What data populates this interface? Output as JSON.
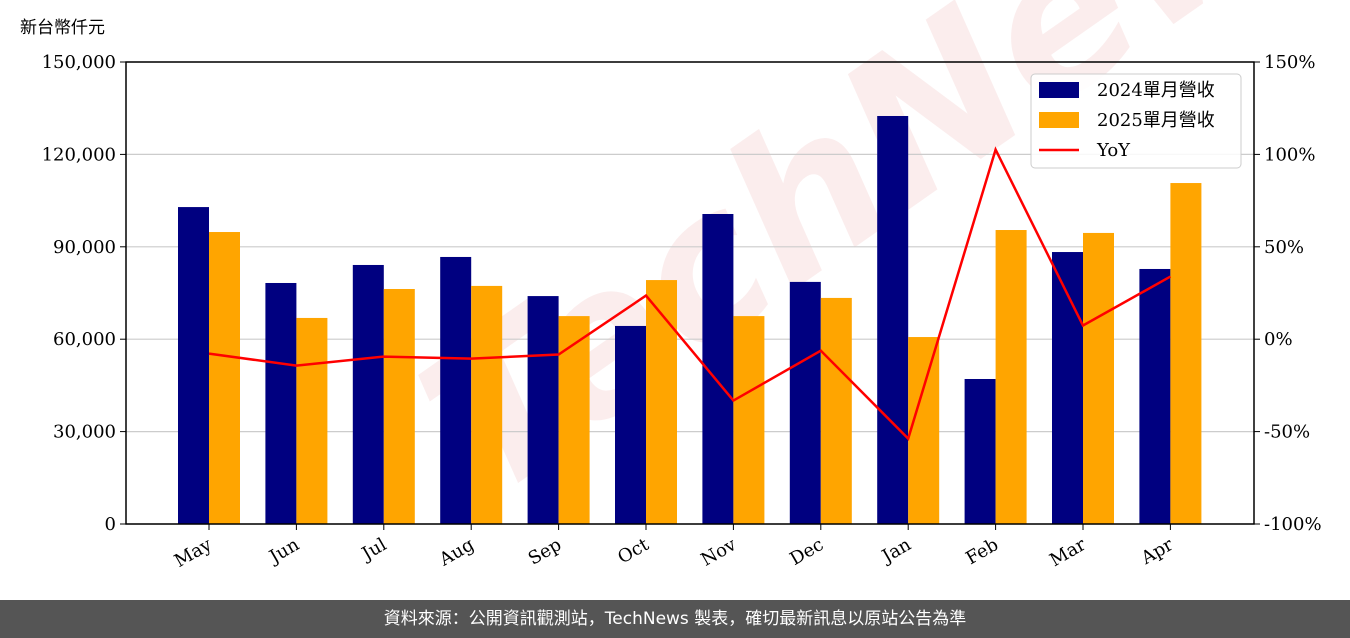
{
  "chart_data": {
    "type": "bar-line",
    "ylabel": "新台幣仟元",
    "watermark": "TechNews",
    "footer": "資料來源：公開資訊觀測站，TechNews 製表，確切最新訊息以原站公告為準",
    "categories": [
      "May",
      "Jun",
      "Jul",
      "Aug",
      "Sep",
      "Oct",
      "Nov",
      "Dec",
      "Jan",
      "Feb",
      "Mar",
      "Apr"
    ],
    "series": [
      {
        "name": "2024單月營收",
        "color": "#000080",
        "kind": "bar",
        "values": [
          102900,
          78250,
          84100,
          86700,
          74000,
          64300,
          100650,
          78600,
          132470,
          47080,
          88300,
          82800
        ]
      },
      {
        "name": "2025單月營收",
        "color": "#ffa500",
        "kind": "bar",
        "values": [
          94800,
          66900,
          76300,
          77300,
          67500,
          79200,
          67500,
          73400,
          60700,
          95450,
          94500,
          110700
        ]
      },
      {
        "name": "YoY",
        "color": "#ff0000",
        "kind": "line",
        "axis": "y2",
        "values": [
          -7.8,
          -14.3,
          -9.4,
          -10.5,
          -8.3,
          23.6,
          -33.2,
          -6.2,
          -53.8,
          102.6,
          7.4,
          33.9
        ]
      }
    ],
    "ylim": [
      0,
      150000
    ],
    "yticks": [
      0,
      {
        "value": 30000,
        "label": "30,000"
      },
      {
        "value": 60000,
        "label": "60,000"
      },
      {
        "value": 90000,
        "label": "90,000"
      },
      {
        "value": 120000,
        "label": "120,000"
      },
      {
        "value": 150000,
        "label": "150,000"
      }
    ],
    "y2lim": [
      -100,
      150
    ],
    "y2ticks": [
      {
        "value": -100,
        "label": "-100%"
      },
      {
        "value": -50,
        "label": "-50%"
      },
      {
        "value": 0,
        "label": "0%"
      },
      {
        "value": 50,
        "label": "50%"
      },
      {
        "value": 100,
        "label": "100%"
      },
      {
        "value": 150,
        "label": "150%"
      }
    ],
    "grid": true,
    "legend": "upper right"
  }
}
